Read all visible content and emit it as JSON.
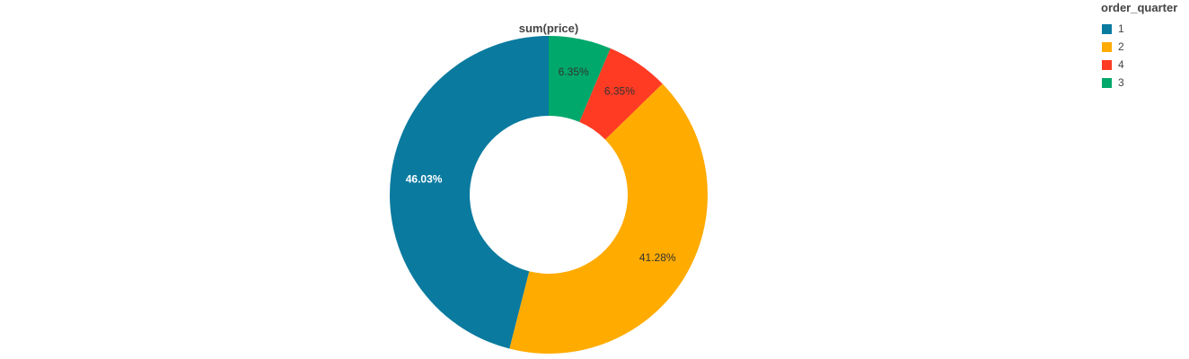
{
  "chart_data": {
    "type": "pie",
    "title": "sum(price)",
    "donut": true,
    "legend_title": "order_quarter",
    "legend_position": "top-right",
    "slices": [
      {
        "label": "3",
        "percent": 6.35,
        "percent_label": "6.35%",
        "color": "#00a86b",
        "label_color": "#333333"
      },
      {
        "label": "4",
        "percent": 6.35,
        "percent_label": "6.35%",
        "color": "#ff3b24",
        "label_color": "#333333"
      },
      {
        "label": "2",
        "percent": 41.28,
        "percent_label": "41.28%",
        "color": "#ffab00",
        "label_color": "#333333"
      },
      {
        "label": "1",
        "percent": 46.03,
        "percent_label": "46.03%",
        "color": "#0a7a9f",
        "label_color": "#ffffff"
      }
    ],
    "legend": [
      {
        "label": "1",
        "color": "#0a7a9f"
      },
      {
        "label": "2",
        "color": "#ffab00"
      },
      {
        "label": "4",
        "color": "#ff3b24"
      },
      {
        "label": "3",
        "color": "#00a86b"
      }
    ]
  }
}
